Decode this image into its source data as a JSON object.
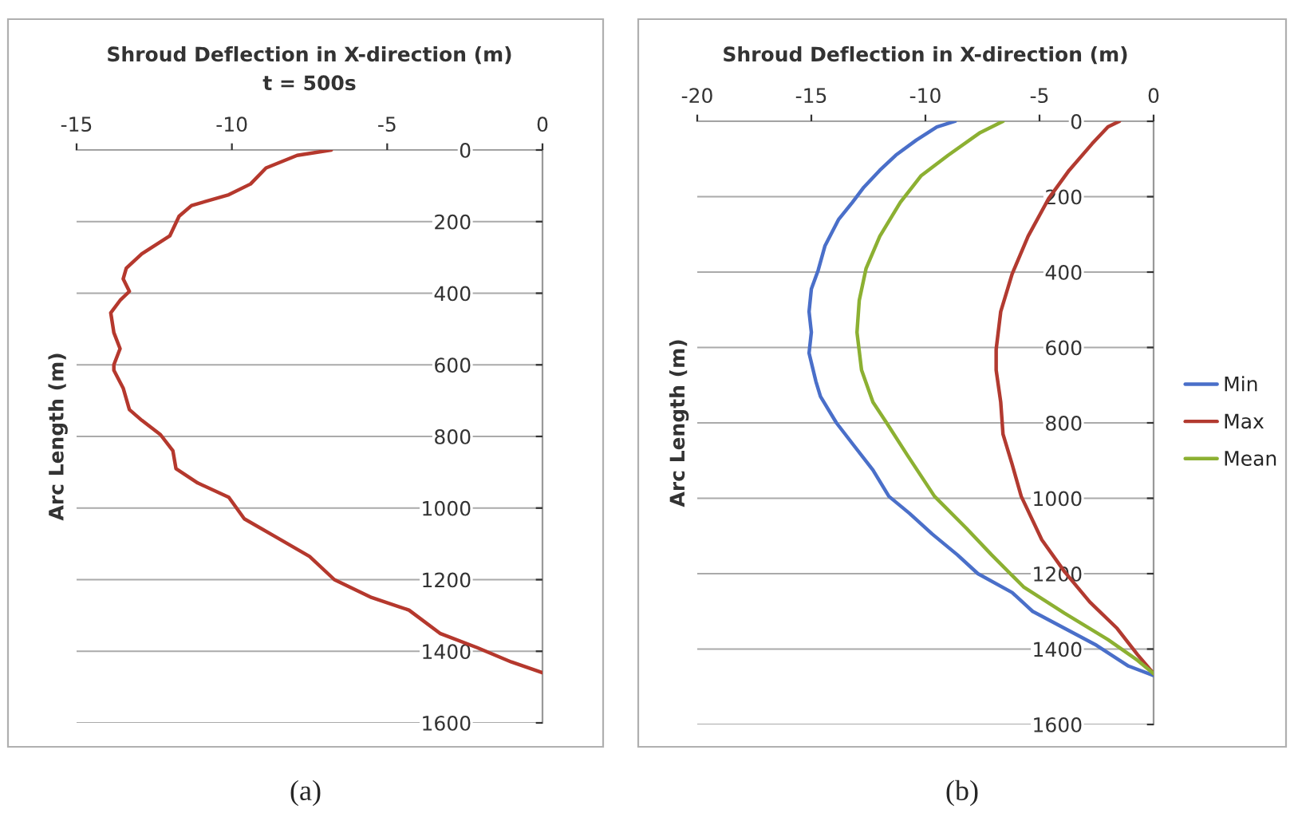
{
  "chart_data": [
    {
      "type": "line",
      "title": "Shroud Deflection in X-direction (m)",
      "subtitle": "t = 500s",
      "ylabel": "Arc Length (m)",
      "xlim": [
        -15,
        0
      ],
      "xticks": [
        -15,
        -10,
        -5,
        0
      ],
      "ylim": [
        1600,
        0
      ],
      "yticks": [
        0,
        200,
        400,
        600,
        800,
        1000,
        1200,
        1400,
        1600
      ],
      "grid": "y",
      "legend": false,
      "annotations": [
        "(a)"
      ],
      "series": [
        {
          "color": "#b5382d",
          "x": [
            -6.8,
            -7.9,
            -8.9,
            -9.4,
            -10.1,
            -11.3,
            -11.7,
            -12.0,
            -12.9,
            -13.4,
            -13.5,
            -13.3,
            -13.6,
            -13.9,
            -13.8,
            -13.6,
            -13.8,
            -13.8,
            -13.5,
            -13.3,
            -12.9,
            -12.3,
            -11.9,
            -11.8,
            -11.1,
            -10.1,
            -9.6,
            -8.6,
            -7.5,
            -6.7,
            -5.5,
            -4.3,
            -3.3,
            -2.1,
            -1.0,
            0
          ],
          "values": [
            0,
            15,
            50,
            95,
            125,
            155,
            185,
            240,
            290,
            330,
            360,
            395,
            420,
            455,
            510,
            555,
            600,
            615,
            665,
            725,
            755,
            795,
            840,
            890,
            930,
            970,
            1030,
            1080,
            1135,
            1200,
            1250,
            1285,
            1350,
            1390,
            1430,
            1460
          ]
        }
      ]
    },
    {
      "type": "line",
      "title": "Shroud Deflection in X-direction (m)",
      "ylabel": "Arc Length (m)",
      "xlim": [
        -20,
        0
      ],
      "xticks": [
        -20,
        -15,
        -10,
        -5,
        0
      ],
      "ylim": [
        1600,
        0
      ],
      "yticks": [
        0,
        200,
        400,
        600,
        800,
        1000,
        1200,
        1400,
        1600
      ],
      "grid": "y",
      "legend": "right",
      "annotations": [
        "(b)"
      ],
      "series": [
        {
          "name": "Min",
          "color": "#4a6fc9",
          "x": [
            -8.7,
            -9.5,
            -10.4,
            -11.3,
            -12.0,
            -12.7,
            -13.2,
            -13.8,
            -14.4,
            -14.7,
            -15.0,
            -15.1,
            -15.0,
            -15.1,
            -14.8,
            -14.6,
            -13.9,
            -13.2,
            -12.3,
            -11.6,
            -10.7,
            -9.7,
            -8.6,
            -7.7,
            -6.2,
            -5.3,
            -3.9,
            -2.5,
            -1.1,
            0
          ],
          "values": [
            0,
            15,
            50,
            90,
            130,
            175,
            215,
            260,
            330,
            395,
            445,
            505,
            560,
            615,
            690,
            730,
            800,
            855,
            925,
            995,
            1040,
            1095,
            1150,
            1200,
            1250,
            1300,
            1345,
            1390,
            1445,
            1470
          ]
        },
        {
          "name": "Max",
          "color": "#b23a30",
          "x": [
            -1.5,
            -2.0,
            -2.7,
            -3.7,
            -4.6,
            -5.5,
            -6.2,
            -6.7,
            -6.9,
            -6.9,
            -6.7,
            -6.6,
            -6.2,
            -5.8,
            -4.9,
            -3.9,
            -2.8,
            -1.6,
            -0.7,
            0
          ],
          "values": [
            0,
            15,
            60,
            130,
            205,
            305,
            405,
            505,
            605,
            660,
            745,
            830,
            910,
            995,
            1110,
            1195,
            1275,
            1345,
            1415,
            1465
          ]
        },
        {
          "name": "Mean",
          "color": "#8cb032",
          "x": [
            -6.6,
            -7.6,
            -9.0,
            -10.2,
            -11.1,
            -12.0,
            -12.6,
            -12.9,
            -13.0,
            -12.8,
            -12.3,
            -11.7,
            -10.8,
            -9.6,
            -8.2,
            -7.1,
            -5.7,
            -3.9,
            -2.0,
            -0.7,
            0
          ],
          "values": [
            0,
            30,
            90,
            145,
            215,
            305,
            390,
            475,
            560,
            660,
            745,
            800,
            885,
            995,
            1080,
            1150,
            1235,
            1305,
            1375,
            1430,
            1465
          ]
        }
      ]
    }
  ]
}
